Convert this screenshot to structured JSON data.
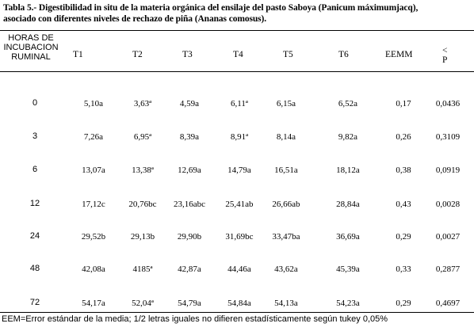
{
  "caption": {
    "line1": "Tabla 5.-  Digestibilidad in situ de la materia orgánica del ensilaje del pasto Saboya (Panicum máximumjacq),",
    "line2": "asociado con diferentes niveles de rechazo de piña (Ananas comosus)."
  },
  "headers": {
    "hours_line1": "HORAS DE",
    "hours_line2": "INCUBACION",
    "hours_line3": "RUMINAL",
    "t1": "T1",
    "t2": "T2",
    "t3": "T3",
    "t4": "T4",
    "t5": "T5",
    "t6": "T6",
    "eemm": "EEMM",
    "p_line1": "<",
    "p_line2": "P"
  },
  "rows": [
    {
      "hours": "0",
      "t1": "5,10a",
      "t2": "3,63ª",
      "t3": "4,59a",
      "t4": "6,11ª",
      "t5": "6,15a",
      "t6": "6,52a",
      "eemm": "0,17",
      "p": "0,0436"
    },
    {
      "hours": "3",
      "t1": "7,26a",
      "t2": "6,95ª",
      "t3": "8,39a",
      "t4": "8,91ª",
      "t5": "8,14a",
      "t6": "9,82a",
      "eemm": "0,26",
      "p": "0,3109"
    },
    {
      "hours": "6",
      "t1": "13,07a",
      "t2": "13,38ª",
      "t3": "12,69a",
      "t4": "14,79a",
      "t5": "16,51a",
      "t6": "18,12a",
      "eemm": "0,38",
      "p": "0,0919"
    },
    {
      "hours": "12",
      "t1": "17,12c",
      "t2": "20,76bc",
      "t3": "23,16abc",
      "t4": "25,41ab",
      "t5": "26,66ab",
      "t6": "28,84a",
      "eemm": "0,43",
      "p": "0,0028"
    },
    {
      "hours": "24",
      "t1": "29,52b",
      "t2": "29,13b",
      "t3": "29,90b",
      "t4": "31,69bc",
      "t5": "33,47ba",
      "t6": "36,69a",
      "eemm": "0,29",
      "p": "0,0027"
    },
    {
      "hours": "48",
      "t1": "42,08a",
      "t2": "4185ª",
      "t3": "42,87a",
      "t4": "44,46a",
      "t5": "43,62a",
      "t6": "45,39a",
      "eemm": "0,33",
      "p": "0,2877"
    },
    {
      "hours": "72",
      "t1": "54,17a",
      "t2": "52,04ª",
      "t3": "54,79a",
      "t4": "54,84a",
      "t5": "54,13a",
      "t6": "54,23a",
      "eemm": "0,29",
      "p": "0,4697"
    }
  ],
  "footnote": "EEM=Error estándar de la media; 1/2 letras iguales no difieren estadísticamente según tukey 0,05%"
}
